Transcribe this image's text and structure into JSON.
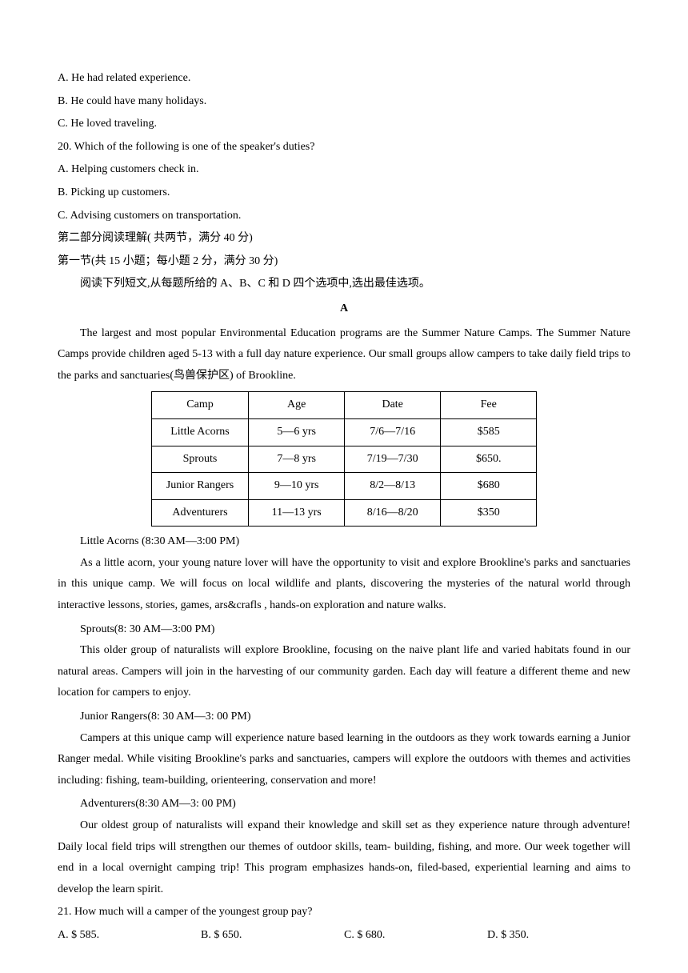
{
  "q19_choices": {
    "a": "A. He had related experience.",
    "b": "B. He could have many holidays.",
    "c": "C. He loved traveling."
  },
  "q20": {
    "stem": "20. Which of the following is one of the speaker's duties?",
    "a": "A. Helping customers check in.",
    "b": "B. Picking up customers.",
    "c": "C. Advising customers on transportation."
  },
  "section2_header": "第二部分阅读理解( 共两节，满分 40 分)",
  "section2_sub": "第一节(共 15 小题；每小题 2 分，满分 30 分)",
  "section2_instruction": "阅读下列短文,从每题所给的 A、B、C 和 D 四个选项中,选出最佳选项。",
  "passage_label": "A",
  "intro": "The largest and most popular Environmental Education programs are the Summer Nature Camps. The Summer Nature Camps provide children aged 5-13 with a full day nature experience. Our small groups allow campers to take daily field trips to the parks and sanctuaries(鸟兽保护区) of Brookline.",
  "table": {
    "headers": [
      "Camp",
      "Age",
      "Date",
      "Fee"
    ],
    "rows": [
      [
        "Little Acorns",
        "5—6 yrs",
        "7/6—7/16",
        "$585"
      ],
      [
        "Sprouts",
        "7—8 yrs",
        "7/19—7/30",
        "$650."
      ],
      [
        "Junior Rangers",
        "9—10 yrs",
        "8/2—8/13",
        "$680"
      ],
      [
        "Adventurers",
        "11—13 yrs",
        "8/16—8/20",
        "$350"
      ]
    ]
  },
  "camps": {
    "acorns_title": "Little Acorns (8:30 AM—3:00 PM)",
    "acorns_body": "As a little acorn, your young nature lover will have the opportunity to visit and explore Brookline's parks and sanctuaries in this unique camp. We will focus on local wildlife and plants, discovering the mysteries of the natural world through interactive lessons, stories, games, ars&crafls , hands-on exploration and nature walks.",
    "sprouts_title": "Sprouts(8: 30 AM—3:00 PM)",
    "sprouts_body": "This older group of naturalists will explore Brookline, focusing on the naive plant life and varied habitats found in our natural areas. Campers will join in the harvesting of our community garden. Each day will feature a different theme and new location for campers to enjoy.",
    "rangers_title": "Junior Rangers(8: 30 AM—3: 00 PM)",
    "rangers_body": "Campers at this unique camp will experience nature based learning in the outdoors as they work towards earning a Junior Ranger medal. While visiting Brookline's parks and sanctuaries, campers will explore the outdoors with themes and activities including: fishing, team-building, orienteering, conservation and more!",
    "adv_title": "Adventurers(8:30 AM—3: 00 PM)",
    "adv_body": "Our oldest group of naturalists will expand their knowledge and skill set as they experience nature through adventure! Daily local field trips will strengthen our themes of outdoor skills, team- building, fishing, and more. Our week together will end in a local overnight camping trip! This program emphasizes hands-on, filed-based, experiential learning and aims to develop the learn spirit."
  },
  "q21": {
    "stem": "21. How much will a camper of the youngest group pay?",
    "a": "A. $ 585.",
    "b": "B. $ 650.",
    "c": "C. $ 680.",
    "d": "D. $ 350."
  }
}
